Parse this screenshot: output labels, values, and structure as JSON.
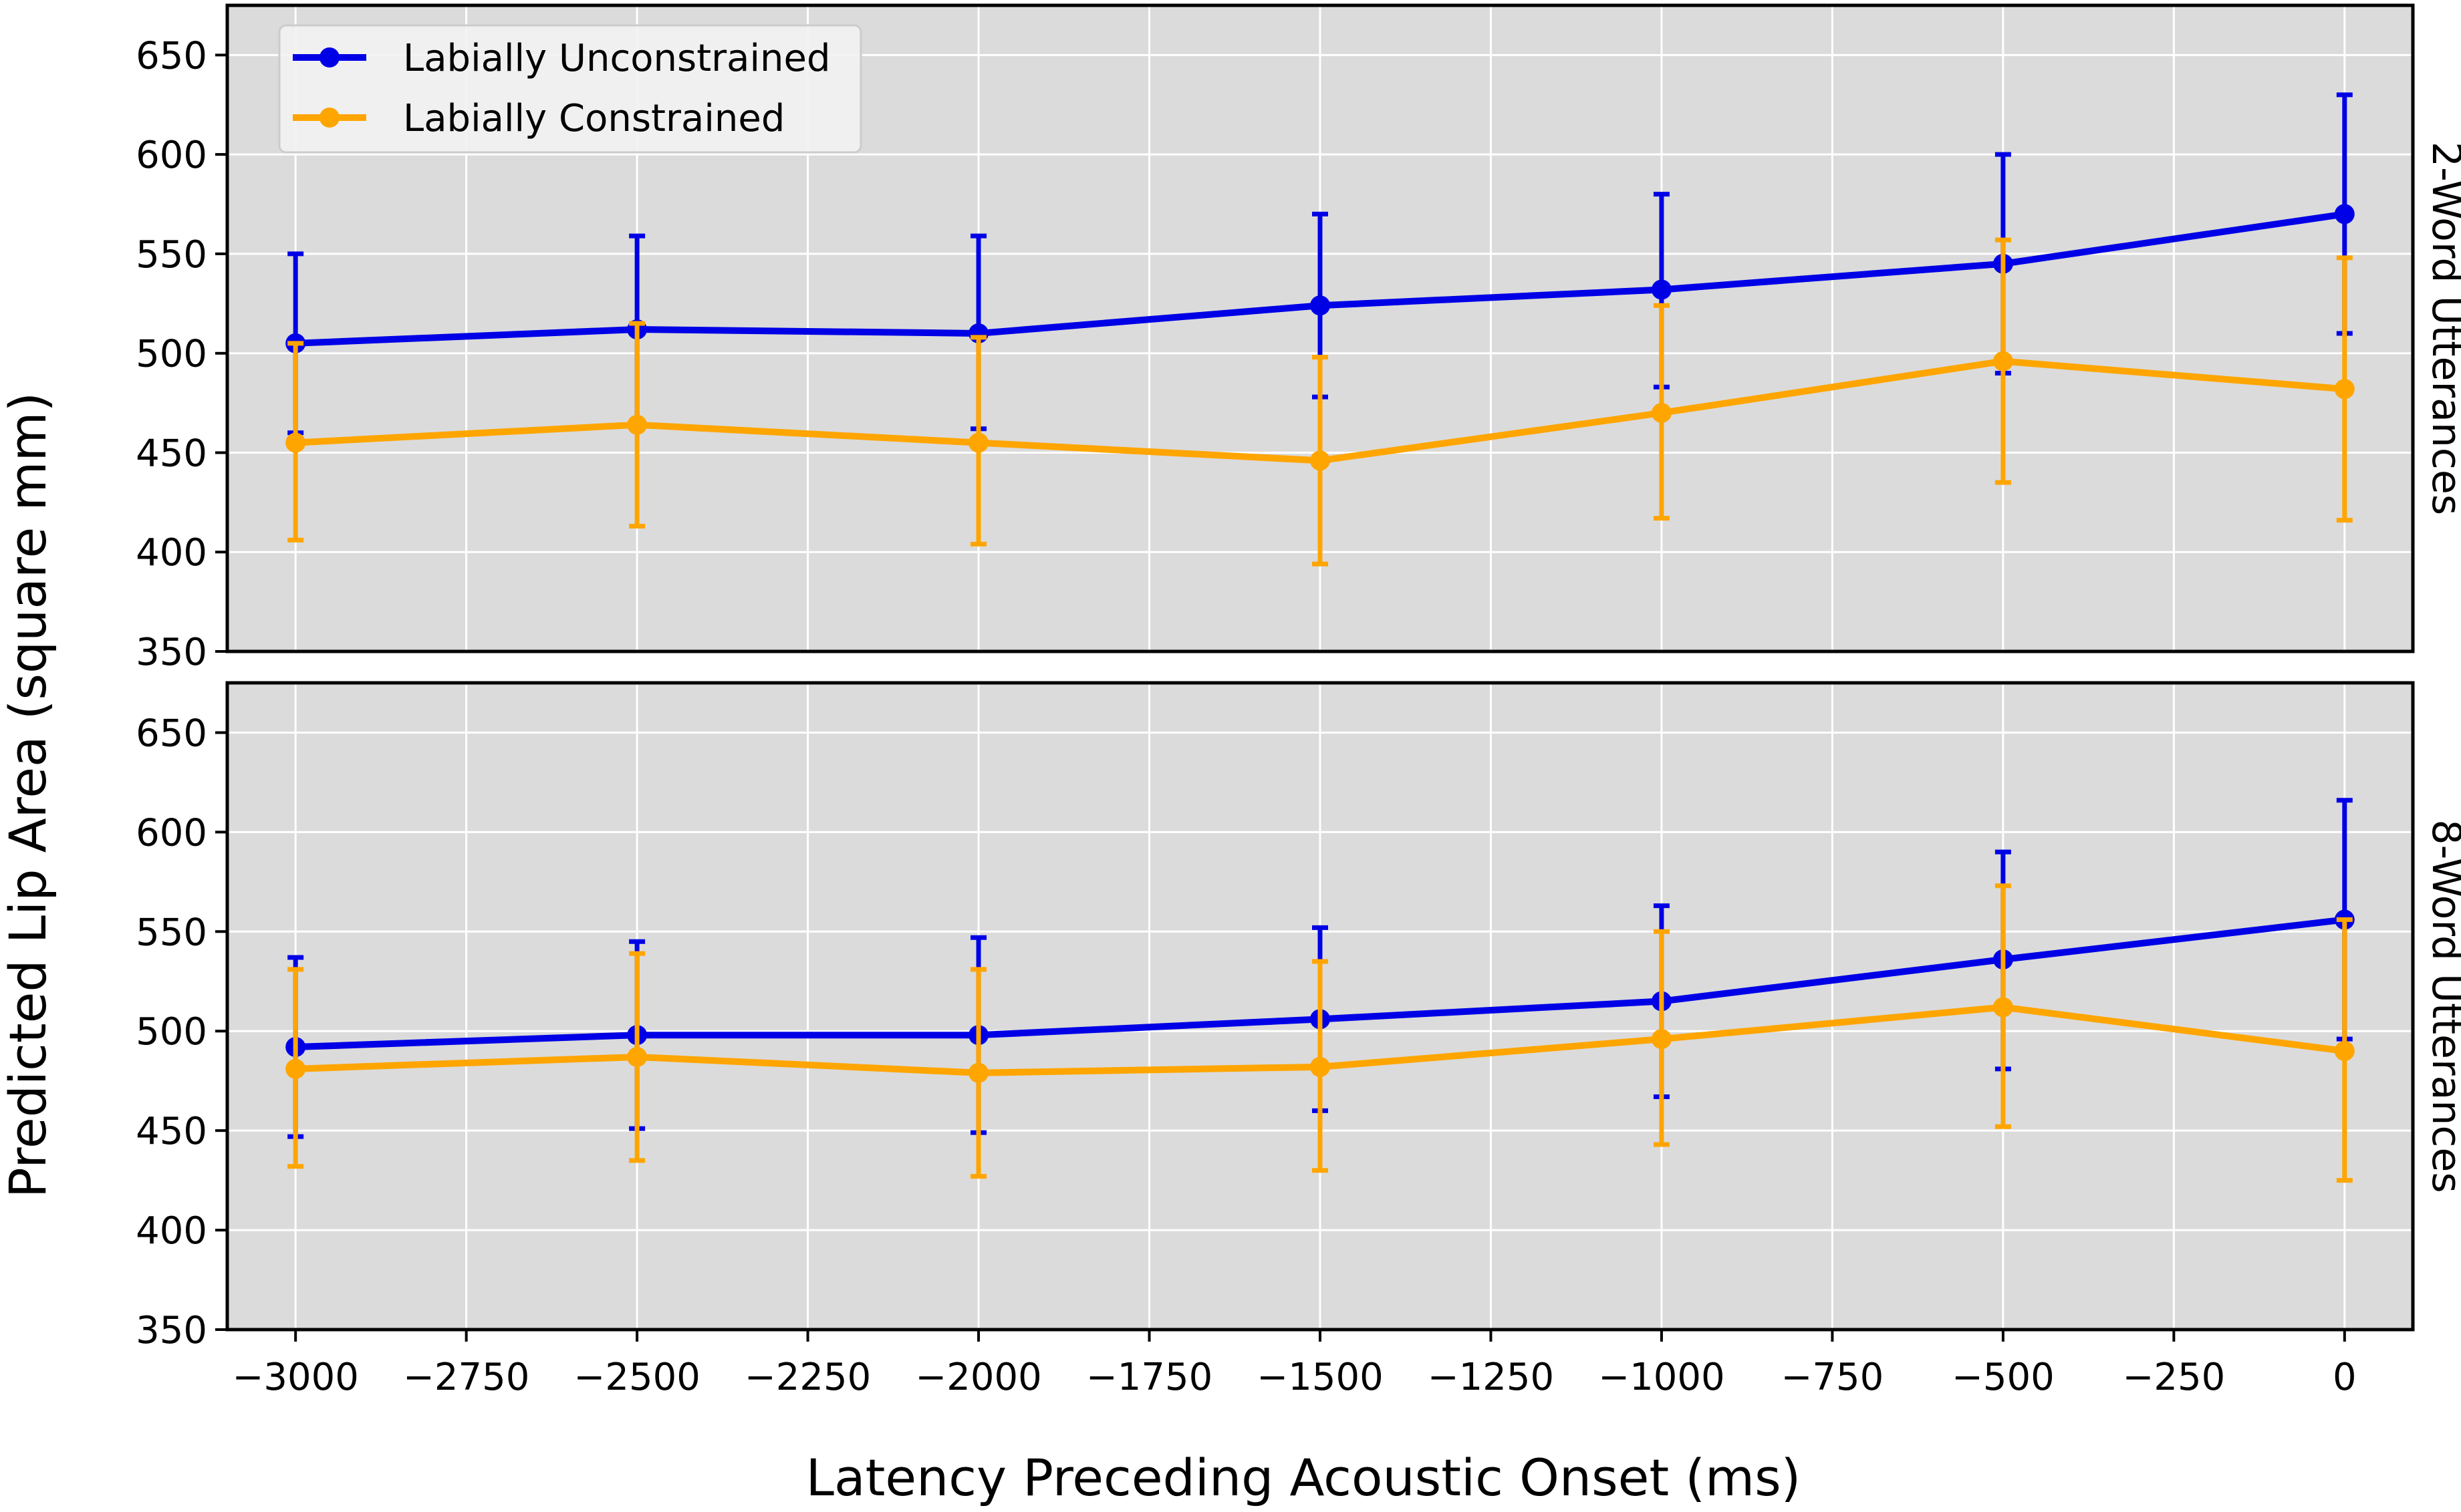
{
  "chart_data": {
    "type": "line",
    "xlabel": "Latency Preceding Acoustic Onset (ms)",
    "ylabel": "Predicted Lip Area (square mm)",
    "xlim": [
      -3100,
      100
    ],
    "ylim": [
      350,
      675
    ],
    "x_ticks": [
      -3000,
      -2750,
      -2500,
      -2250,
      -2000,
      -1750,
      -1500,
      -1250,
      -1000,
      -750,
      -500,
      -250,
      0
    ],
    "x_tick_labels": [
      "−3000",
      "−2750",
      "−2500",
      "−2250",
      "−2000",
      "−1750",
      "−1500",
      "−1250",
      "−1000",
      "−750",
      "−500",
      "−250",
      "0"
    ],
    "y_ticks": [
      350,
      400,
      450,
      500,
      550,
      600,
      650
    ],
    "y_tick_labels": [
      "350",
      "400",
      "450",
      "500",
      "550",
      "600",
      "650"
    ],
    "grid": true,
    "legend_position": "top-left",
    "x": [
      -3000,
      -2500,
      -2000,
      -1500,
      -1000,
      -500,
      0
    ],
    "colors": {
      "unconstrained": "#0000e6",
      "constrained": "#ffa500",
      "panel_bg": "#dbdbdb",
      "grid": "#ffffff"
    },
    "panels": [
      {
        "facet_label": "2-Word Utterances",
        "series": [
          {
            "name": "Labially Unconstrained",
            "color_key": "unconstrained",
            "values": [
              505,
              512,
              510,
              524,
              532,
              545,
              570
            ],
            "lower": [
              460,
              465,
              462,
              478,
              483,
              490,
              510
            ],
            "upper": [
              550,
              559,
              559,
              570,
              580,
              600,
              630
            ]
          },
          {
            "name": "Labially Constrained",
            "color_key": "constrained",
            "values": [
              455,
              464,
              455,
              446,
              470,
              496,
              482
            ],
            "lower": [
              406,
              413,
              404,
              394,
              417,
              435,
              416
            ],
            "upper": [
              505,
              515,
              508,
              498,
              524,
              557,
              548
            ]
          }
        ]
      },
      {
        "facet_label": "8-Word Utterances",
        "series": [
          {
            "name": "Labially Unconstrained",
            "color_key": "unconstrained",
            "values": [
              492,
              498,
              498,
              506,
              515,
              536,
              556
            ],
            "lower": [
              447,
              451,
              449,
              460,
              467,
              481,
              496
            ],
            "upper": [
              537,
              545,
              547,
              552,
              563,
              590,
              616
            ]
          },
          {
            "name": "Labially Constrained",
            "color_key": "constrained",
            "values": [
              481,
              487,
              479,
              482,
              496,
              512,
              490
            ],
            "lower": [
              432,
              435,
              427,
              430,
              443,
              452,
              425
            ],
            "upper": [
              531,
              539,
              531,
              535,
              550,
              573,
              556
            ]
          }
        ]
      }
    ],
    "legend": [
      "Labially Unconstrained",
      "Labially Constrained"
    ]
  }
}
